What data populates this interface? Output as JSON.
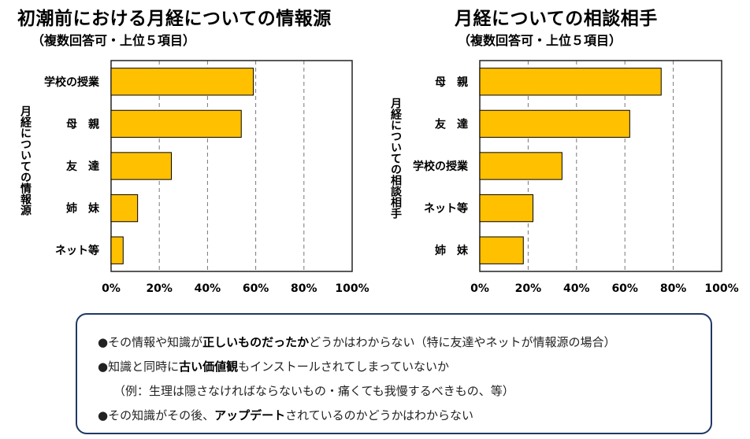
{
  "chart_data": [
    {
      "type": "bar",
      "orientation": "horizontal",
      "title": "初潮前における月経についての情報源",
      "subtitle": "（複数回答可・上位５項目）",
      "ylabel": "月経についての情報源",
      "xlabel": "",
      "categories": [
        "学校の授業",
        "母　親",
        "友　達",
        "姉　妹",
        "ネット等"
      ],
      "values": [
        59,
        54,
        25,
        11,
        5
      ],
      "xlim": [
        0,
        100
      ],
      "xticks": [
        "0%",
        "20%",
        "40%",
        "60%",
        "80%",
        "100%"
      ],
      "grid": "vertical-dashed",
      "bar_color": "#FFC000"
    },
    {
      "type": "bar",
      "orientation": "horizontal",
      "title": "月経についての相談相手",
      "subtitle": "（複数回答可・上位５項目）",
      "ylabel": "月経についての相談相手",
      "xlabel": "",
      "categories": [
        "母　親",
        "友　達",
        "学校の授業",
        "ネット等",
        "姉　妹"
      ],
      "values": [
        75,
        62,
        34,
        22,
        18
      ],
      "xlim": [
        0,
        100
      ],
      "xticks": [
        "0%",
        "20%",
        "40%",
        "60%",
        "80%",
        "100%"
      ],
      "grid": "vertical-dashed",
      "bar_color": "#FFC000"
    }
  ],
  "notes": [
    {
      "parts": [
        {
          "t": "●その情報や知識が",
          "b": false
        },
        {
          "t": "正しいものだったか",
          "b": true
        },
        {
          "t": "どうかはわからない（特に友達やネットが情報源の場合）",
          "b": false
        }
      ]
    },
    {
      "parts": [
        {
          "t": "●知識と同時に",
          "b": false
        },
        {
          "t": "古い価値観",
          "b": true
        },
        {
          "t": "もインストールされてしまっていないか",
          "b": false
        }
      ]
    },
    {
      "parts": [
        {
          "t": "（例：生理は隠さなければならないもの・痛くても我慢するべきもの、等）",
          "b": false
        }
      ]
    },
    {
      "parts": [
        {
          "t": "●その知識がその後、",
          "b": false
        },
        {
          "t": "アップデート",
          "b": true
        },
        {
          "t": "されているのかどうかはわからない",
          "b": false
        }
      ]
    }
  ]
}
